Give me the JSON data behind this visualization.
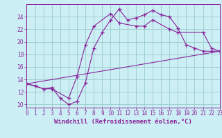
{
  "xlabel": "Windchill (Refroidissement éolien,°C)",
  "bg_color": "#cceef5",
  "grid_color": "#99cccc",
  "line_color": "#882299",
  "markersize": 2.0,
  "linewidth": 0.8,
  "xlim": [
    0,
    23
  ],
  "ylim": [
    9.5,
    26.0
  ],
  "xticks": [
    0,
    1,
    2,
    3,
    4,
    5,
    6,
    7,
    8,
    9,
    10,
    11,
    12,
    13,
    14,
    15,
    16,
    17,
    18,
    19,
    20,
    21,
    22,
    23
  ],
  "yticks": [
    10,
    12,
    14,
    16,
    18,
    20,
    22,
    24
  ],
  "line1_x": [
    0,
    1,
    2,
    3,
    4,
    5,
    6,
    7,
    8,
    9,
    10,
    11,
    12,
    13,
    14,
    15,
    16,
    17,
    18,
    19,
    20,
    21,
    22,
    23
  ],
  "line1_y": [
    13.3,
    13.0,
    12.5,
    12.7,
    11.0,
    10.0,
    10.5,
    13.5,
    19.0,
    21.5,
    23.5,
    25.2,
    23.5,
    23.8,
    24.3,
    25.0,
    24.3,
    24.0,
    22.2,
    19.5,
    19.0,
    18.5,
    18.5,
    18.5
  ],
  "line2_x": [
    0,
    2,
    3,
    5,
    6,
    7,
    8,
    10,
    11,
    13,
    14,
    15,
    17,
    18,
    21,
    22,
    23
  ],
  "line2_y": [
    13.3,
    12.5,
    12.5,
    11.0,
    14.5,
    19.5,
    22.5,
    24.5,
    23.0,
    22.5,
    22.5,
    23.5,
    22.0,
    21.5,
    21.5,
    19.0,
    18.5
  ],
  "line3_x": [
    0,
    23
  ],
  "line3_y": [
    13.3,
    18.5
  ],
  "tick_fontsize": 5.5,
  "xlabel_fontsize": 6.5
}
